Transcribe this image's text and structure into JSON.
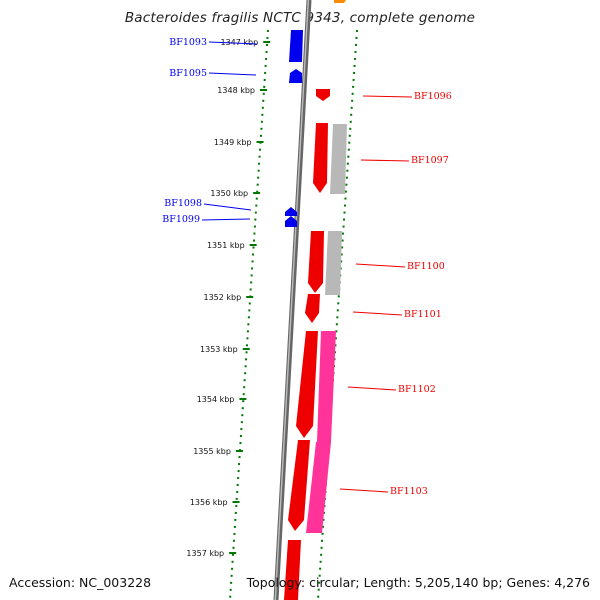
{
  "title": "Bacteroides fragilis NCTC 9343, complete genome",
  "accession": "Accession: NC_003228",
  "topology": "Topology: circular; Length: 5,205,140 bp; Genes: 4,276",
  "colors": {
    "forward_gene": "#0000ee",
    "reverse_gene": "#ee0000",
    "pseudo_gray": "#b8b8b8",
    "pink": "#ff3399",
    "ruler": "#007700",
    "backbone": "#888888"
  },
  "ticks": [
    "1347 kbp",
    "1348 kbp",
    "1349 kbp",
    "1350 kbp",
    "1351 kbp",
    "1352 kbp",
    "1353 kbp",
    "1354 kbp",
    "1355 kbp",
    "1356 kbp",
    "1357 kbp"
  ],
  "genes": [
    {
      "name": "BF1093",
      "strand": "forward"
    },
    {
      "name": "BF1095",
      "strand": "forward"
    },
    {
      "name": "BF1096",
      "strand": "reverse"
    },
    {
      "name": "BF1097",
      "strand": "reverse"
    },
    {
      "name": "BF1098",
      "strand": "forward"
    },
    {
      "name": "BF1099",
      "strand": "forward"
    },
    {
      "name": "BF1100",
      "strand": "reverse"
    },
    {
      "name": "BF1101",
      "strand": "reverse"
    },
    {
      "name": "BF1102",
      "strand": "reverse"
    },
    {
      "name": "BF1103",
      "strand": "reverse"
    }
  ]
}
